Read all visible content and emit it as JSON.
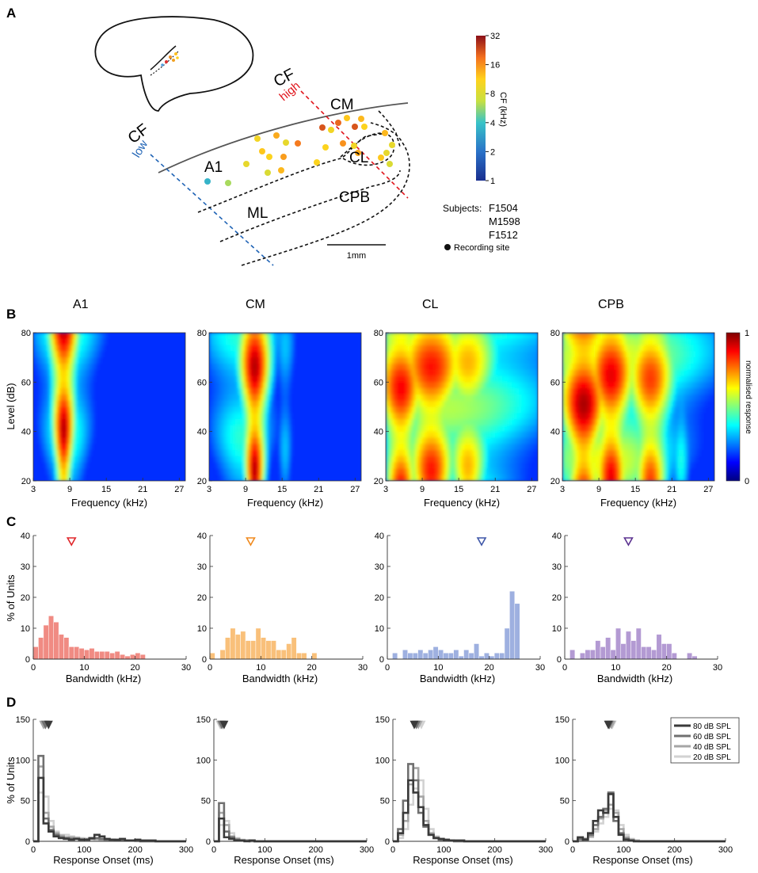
{
  "panel_labels": {
    "a": "A",
    "b": "B",
    "c": "C",
    "d": "D"
  },
  "panel_a": {
    "cf_low_label": "CF",
    "cf_low_word": "low",
    "cf_high_label": "CF",
    "cf_high_word": "high",
    "regions": {
      "a1": "A1",
      "cm": "CM",
      "cl": "CL",
      "ml": "ML",
      "cpb": "CPB"
    },
    "scale_bar_label": "1mm",
    "colorbar": {
      "label": "CF (kHz)",
      "ticks": [
        "32",
        "16",
        "8",
        "4",
        "2",
        "1"
      ]
    },
    "subjects_label": "Subjects:",
    "subjects": [
      "F1504",
      "M1598",
      "F1512"
    ],
    "recording_site_label": "Recording site",
    "site_cf_khz": [
      3.5,
      6,
      10,
      14,
      9,
      18,
      12,
      9,
      11,
      15,
      13,
      8,
      22,
      11,
      10,
      16,
      20,
      12,
      22,
      13,
      11,
      10,
      14,
      11,
      13,
      9,
      12,
      9,
      8
    ]
  },
  "colors": {
    "low": "#1f63b5",
    "high": "#e0141b",
    "dashed": "#111111",
    "cortex": "#555555"
  },
  "chart_data": [
    {
      "type": "heatmap",
      "panel": "B",
      "area_titles": [
        "A1",
        "CM",
        "CL",
        "CPB"
      ],
      "xlabel": "Frequency (kHz)",
      "ylabel": "Level (dB)",
      "x_ticks": [
        "3",
        "9",
        "15",
        "21",
        "27"
      ],
      "xlim": [
        3,
        28
      ],
      "y_ticks": [
        "20",
        "40",
        "60",
        "80"
      ],
      "ylim": [
        20,
        80
      ],
      "colorbar": {
        "label": "normalised response",
        "min_label": "0",
        "max_label": "1"
      },
      "bands": [
        [
          {
            "f": 8,
            "w": 1.6,
            "v": 0.95
          },
          {
            "f": 8.4,
            "w": 3.8,
            "v": 0.45
          }
        ],
        [
          {
            "f": 10.5,
            "w": 1.8,
            "v": 0.95
          },
          {
            "f": 8.5,
            "w": 5,
            "v": 0.42
          },
          {
            "f": 15.5,
            "w": 1.2,
            "v": 0.32
          }
        ],
        [
          {
            "f": 5.5,
            "w": 3,
            "v": 0.88
          },
          {
            "f": 10.5,
            "w": 4,
            "v": 0.86
          },
          {
            "f": 16.5,
            "w": 3.5,
            "v": 0.7
          },
          {
            "f": 13,
            "w": 14,
            "v": 0.55
          }
        ],
        [
          {
            "f": 6.5,
            "w": 3.2,
            "v": 0.96
          },
          {
            "f": 11,
            "w": 3,
            "v": 0.9
          },
          {
            "f": 17.5,
            "w": 3,
            "v": 0.82
          },
          {
            "f": 10,
            "w": 12,
            "v": 0.62
          },
          {
            "f": 22.5,
            "w": 1.5,
            "v": 0.4
          }
        ]
      ]
    },
    {
      "type": "bar",
      "panel": "C",
      "xlabel": "Bandwidth (kHz)",
      "ylabel": "% of Units",
      "x_ticks": [
        "0",
        "10",
        "20",
        "30"
      ],
      "xlim": [
        0,
        30
      ],
      "y_ticks": [
        "0",
        "10",
        "20",
        "30",
        "40"
      ],
      "ylim": [
        0,
        40
      ],
      "bin_width_khz": 1,
      "series": [
        {
          "name": "A1",
          "color": "#f08b83",
          "marker_color": "#e0262a",
          "median": 7.5,
          "values": [
            4,
            7,
            11,
            14,
            12,
            8,
            7,
            4,
            4,
            3.5,
            3,
            3.5,
            2.5,
            2.5,
            2.5,
            2,
            2.5,
            1.5,
            1,
            1.5,
            2,
            1.5,
            0,
            0,
            0,
            0,
            0,
            0,
            0,
            0
          ]
        },
        {
          "name": "CM",
          "color": "#f9c07a",
          "marker_color": "#f08a1e",
          "median": 8,
          "values": [
            2,
            0,
            3,
            7,
            10,
            8,
            9,
            6,
            6,
            10,
            7,
            6,
            6,
            3,
            3,
            5,
            7,
            2,
            2,
            0,
            2,
            0,
            0,
            0,
            0,
            0,
            0,
            0,
            0,
            0
          ]
        },
        {
          "name": "CL",
          "color": "#9eb0e0",
          "marker_color": "#3f57a8",
          "median": 18.5,
          "values": [
            0,
            2,
            0,
            3,
            2,
            2,
            3,
            2,
            3,
            4,
            3,
            2,
            2,
            3,
            1,
            3,
            2,
            5,
            1,
            2,
            1,
            2,
            2,
            10,
            22,
            18,
            0,
            0,
            0,
            0
          ]
        },
        {
          "name": "CPB",
          "color": "#b39ad3",
          "marker_color": "#5b3290",
          "median": 12.5,
          "values": [
            0,
            3,
            0,
            2,
            3,
            3,
            6,
            4,
            7,
            3,
            10,
            5,
            9,
            6,
            10,
            4,
            4,
            3,
            8,
            5,
            5,
            2,
            0,
            0,
            2,
            1,
            0,
            0,
            0,
            0
          ]
        }
      ]
    },
    {
      "type": "line",
      "panel": "D",
      "xlabel": "Response Onset (ms)",
      "ylabel": "% of Units",
      "x_ticks": [
        "0",
        "100",
        "200",
        "300"
      ],
      "xlim": [
        0,
        300
      ],
      "y_ticks": [
        "0",
        "50",
        "100",
        "150"
      ],
      "ylim": [
        0,
        150
      ],
      "bin_width_ms": 10,
      "legend": [
        {
          "label": "80 dB SPL",
          "color": "#3a3a3a"
        },
        {
          "label": "60 dB SPL",
          "color": "#707070"
        },
        {
          "label": "40 dB SPL",
          "color": "#a6a6a6"
        },
        {
          "label": "20 dB SPL",
          "color": "#d2d2d2"
        }
      ],
      "areas": [
        {
          "name": "A1",
          "medians": [
            30,
            24,
            20,
            22
          ],
          "series": [
            [
              0,
              78,
              22,
              12,
              6,
              4,
              3,
              2,
              3,
              2,
              2,
              4,
              8,
              6,
              3,
              2,
              2,
              3,
              1,
              1,
              2,
              1,
              1,
              1,
              0,
              0,
              0,
              0,
              0,
              0
            ],
            [
              0,
              105,
              28,
              14,
              8,
              5,
              4,
              3,
              3,
              2,
              2,
              3,
              4,
              3,
              2,
              2,
              1,
              1,
              1,
              1,
              1,
              0,
              0,
              0,
              0,
              0,
              0,
              0,
              0,
              0
            ],
            [
              0,
              92,
              35,
              18,
              10,
              7,
              5,
              5,
              4,
              3,
              3,
              3,
              3,
              2,
              2,
              2,
              1,
              1,
              1,
              1,
              1,
              0,
              0,
              0,
              0,
              0,
              0,
              0,
              0,
              0
            ],
            [
              0,
              60,
              55,
              25,
              12,
              8,
              8,
              6,
              5,
              4,
              3,
              3,
              2,
              2,
              2,
              1,
              1,
              1,
              1,
              1,
              0,
              0,
              0,
              0,
              0,
              0,
              0,
              0,
              0,
              0
            ]
          ]
        },
        {
          "name": "CM",
          "medians": [
            20,
            16,
            14,
            12
          ],
          "series": [
            [
              0,
              28,
              5,
              3,
              1,
              1,
              0,
              1,
              0,
              0,
              0,
              0,
              0,
              0,
              0,
              0,
              0,
              0,
              0,
              0,
              0,
              0,
              0,
              0,
              0,
              0,
              0,
              0,
              0,
              0
            ],
            [
              0,
              47,
              12,
              5,
              2,
              1,
              1,
              1,
              0,
              0,
              0,
              0,
              0,
              0,
              0,
              0,
              0,
              0,
              0,
              0,
              0,
              0,
              0,
              0,
              0,
              0,
              0,
              0,
              0,
              0
            ],
            [
              0,
              35,
              20,
              6,
              3,
              1,
              1,
              0,
              0,
              0,
              0,
              0,
              0,
              0,
              0,
              0,
              0,
              0,
              0,
              0,
              0,
              0,
              0,
              0,
              0,
              0,
              0,
              0,
              0,
              0
            ],
            [
              0,
              20,
              25,
              10,
              4,
              2,
              1,
              0,
              0,
              0,
              0,
              0,
              0,
              0,
              0,
              0,
              0,
              0,
              0,
              0,
              0,
              0,
              0,
              0,
              0,
              0,
              0,
              0,
              0,
              0
            ]
          ]
        },
        {
          "name": "CL",
          "medians": [
            42,
            46,
            50,
            56
          ],
          "series": [
            [
              0,
              10,
              35,
              75,
              60,
              42,
              20,
              8,
              4,
              3,
              2,
              1,
              1,
              1,
              0,
              0,
              0,
              0,
              0,
              0,
              0,
              0,
              0,
              0,
              0,
              0,
              0,
              0,
              0,
              0
            ],
            [
              0,
              15,
              50,
              95,
              75,
              35,
              18,
              8,
              4,
              2,
              1,
              1,
              0,
              0,
              0,
              0,
              0,
              0,
              0,
              0,
              0,
              0,
              0,
              0,
              0,
              0,
              0,
              0,
              0,
              0
            ],
            [
              0,
              8,
              25,
              70,
              90,
              55,
              25,
              10,
              5,
              2,
              1,
              1,
              0,
              0,
              0,
              0,
              0,
              0,
              0,
              0,
              0,
              0,
              0,
              0,
              0,
              0,
              0,
              0,
              0,
              0
            ],
            [
              0,
              4,
              15,
              45,
              65,
              75,
              40,
              15,
              6,
              3,
              2,
              1,
              1,
              1,
              0,
              0,
              0,
              0,
              0,
              0,
              0,
              0,
              0,
              0,
              0,
              0,
              0,
              0,
              0,
              0
            ]
          ]
        },
        {
          "name": "CPB",
          "medians": [
            70,
            72,
            76,
            78
          ],
          "series": [
            [
              0,
              5,
              2,
              10,
              25,
              38,
              35,
              58,
              30,
              8,
              2,
              1,
              0,
              0,
              0,
              0,
              0,
              0,
              0,
              0,
              0,
              0,
              0,
              0,
              0,
              0,
              0,
              0,
              0,
              0
            ],
            [
              0,
              3,
              3,
              8,
              20,
              30,
              40,
              60,
              25,
              10,
              3,
              1,
              0,
              0,
              0,
              0,
              0,
              0,
              0,
              0,
              0,
              0,
              0,
              0,
              0,
              0,
              0,
              0,
              0,
              0
            ],
            [
              0,
              2,
              3,
              6,
              15,
              28,
              38,
              45,
              35,
              15,
              5,
              2,
              1,
              0,
              0,
              0,
              0,
              0,
              0,
              0,
              0,
              0,
              0,
              0,
              0,
              0,
              0,
              0,
              0,
              0
            ],
            [
              0,
              1,
              2,
              5,
              12,
              22,
              30,
              40,
              38,
              20,
              8,
              3,
              1,
              0,
              0,
              0,
              0,
              0,
              0,
              0,
              0,
              0,
              0,
              0,
              0,
              0,
              0,
              0,
              0,
              0
            ]
          ]
        }
      ]
    }
  ]
}
